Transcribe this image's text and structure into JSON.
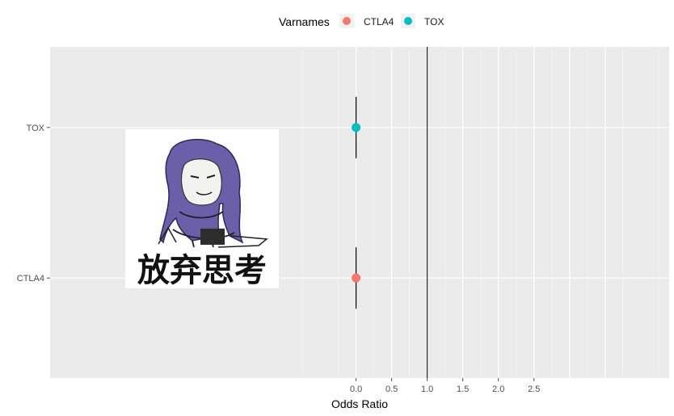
{
  "colors": {
    "panel_background": "#ebebeb",
    "major_grid": "#ffffff",
    "minor_grid": "#f5f5f5",
    "reference_line": "#000000",
    "error_bar": "#000000",
    "axis_tick": "#4d4d4d"
  },
  "overlay_sticker": {
    "icon": "meme-sticker-icon",
    "caption": "放弃思考",
    "hair_color": "#6a5fa8"
  },
  "chart_data": {
    "type": "scatter",
    "subtype": "forest-plot",
    "title": "",
    "xlabel": "Odds Ratio",
    "ylabel": "",
    "categories": [
      "CTLA4",
      "TOX"
    ],
    "x_ticks": [
      0.0,
      0.5,
      1.0,
      1.5,
      2.0,
      2.5
    ],
    "x_tick_labels": [
      "0.0",
      "0.5",
      "1.0",
      "1.5",
      "2.0",
      "2.5"
    ],
    "xlim": [
      -4.3,
      4.4
    ],
    "reference_line_x": 1.0,
    "legend": {
      "title": "Varnames",
      "position": "top",
      "entries": [
        {
          "label": "CTLA4",
          "color": "#f8766d"
        },
        {
          "label": "TOX",
          "color": "#00bfc4"
        }
      ]
    },
    "series": [
      {
        "name": "CTLA4",
        "category": "CTLA4",
        "estimate": 0.0,
        "ci_low": 0.0,
        "ci_high": 0.0,
        "color": "#f8766d"
      },
      {
        "name": "TOX",
        "category": "TOX",
        "estimate": 0.0,
        "ci_low": 0.0,
        "ci_high": 0.0,
        "color": "#00bfc4"
      }
    ],
    "grid": true
  }
}
